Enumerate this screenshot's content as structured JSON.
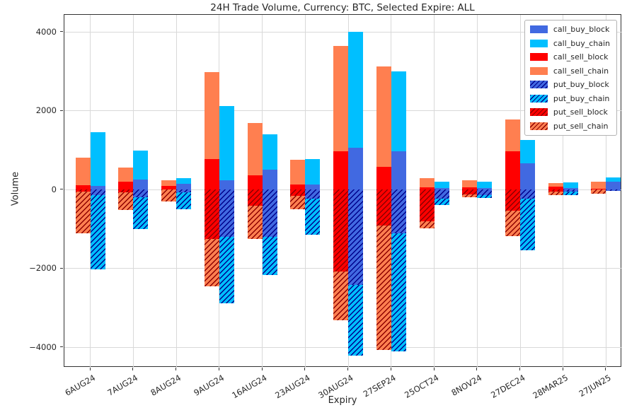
{
  "chart_data": {
    "type": "bar",
    "stacked": true,
    "title": "24H Trade Volume, Currency: BTC, Selected Expire: ALL",
    "xlabel": "Expiry",
    "ylabel": "Volume",
    "ylim": [
      -4500,
      4430
    ],
    "yticks": [
      -4000,
      -2000,
      0,
      2000,
      4000
    ],
    "grid": true,
    "legend_position": "upper right",
    "categories": [
      "6AUG24",
      "7AUG24",
      "8AUG24",
      "9AUG24",
      "16AUG24",
      "23AUG24",
      "30AUG24",
      "27SEP24",
      "25OCT24",
      "8NOV24",
      "27DEC24",
      "28MAR25",
      "27JUN25"
    ],
    "series": [
      {
        "name": "call_buy_block",
        "bar": "buy",
        "color": "#4169E1",
        "hatch": false,
        "values": [
          90,
          250,
          140,
          230,
          500,
          130,
          1060,
          960,
          30,
          30,
          660,
          30,
          200
        ]
      },
      {
        "name": "call_buy_chain",
        "bar": "buy",
        "color": "#00BFFF",
        "hatch": false,
        "values": [
          1360,
          730,
          150,
          1890,
          900,
          650,
          2940,
          2040,
          170,
          170,
          590,
          150,
          100
        ]
      },
      {
        "name": "call_sell_block",
        "bar": "sell",
        "color": "#FF0000",
        "hatch": false,
        "values": [
          100,
          200,
          90,
          780,
          360,
          130,
          960,
          580,
          50,
          50,
          960,
          80,
          20
        ]
      },
      {
        "name": "call_sell_chain",
        "bar": "sell",
        "color": "#FF7F50",
        "hatch": false,
        "values": [
          700,
          350,
          140,
          2200,
          1330,
          620,
          2690,
          2540,
          230,
          180,
          810,
          80,
          180
        ]
      },
      {
        "name": "put_buy_block",
        "bar": "buy",
        "color": "#4169E1",
        "hatch": true,
        "hatch_color": "#00008B",
        "values": [
          -150,
          -200,
          -80,
          -1200,
          -1210,
          -230,
          -2430,
          -1110,
          -230,
          -140,
          -230,
          -50,
          -30
        ]
      },
      {
        "name": "put_buy_chain",
        "bar": "buy",
        "color": "#00BFFF",
        "hatch": true,
        "hatch_color": "#00008B",
        "values": [
          -1870,
          -800,
          -420,
          -1680,
          -960,
          -920,
          -1780,
          -3000,
          -160,
          -80,
          -1310,
          -90,
          0
        ]
      },
      {
        "name": "put_sell_block",
        "bar": "sell",
        "color": "#FF0000",
        "hatch": true,
        "hatch_color": "#8B0000",
        "values": [
          -50,
          -70,
          0,
          -1250,
          -410,
          -160,
          -2080,
          -920,
          -800,
          -120,
          -530,
          -50,
          0
        ]
      },
      {
        "name": "put_sell_chain",
        "bar": "sell",
        "color": "#FF7F50",
        "hatch": true,
        "hatch_color": "#8B0000",
        "values": [
          -1060,
          -450,
          -300,
          -1200,
          -840,
          -340,
          -1230,
          -3150,
          -180,
          -70,
          -650,
          -90,
          -100
        ]
      }
    ],
    "colors": {
      "buy_block": "#4169E1",
      "buy_chain": "#00BFFF",
      "sell_block": "#FF0000",
      "sell_chain": "#FF7F50",
      "hatch_buy": "#00008B",
      "hatch_sell": "#8B0000",
      "grid": "#d9d9d9",
      "spine": "#333333"
    }
  }
}
